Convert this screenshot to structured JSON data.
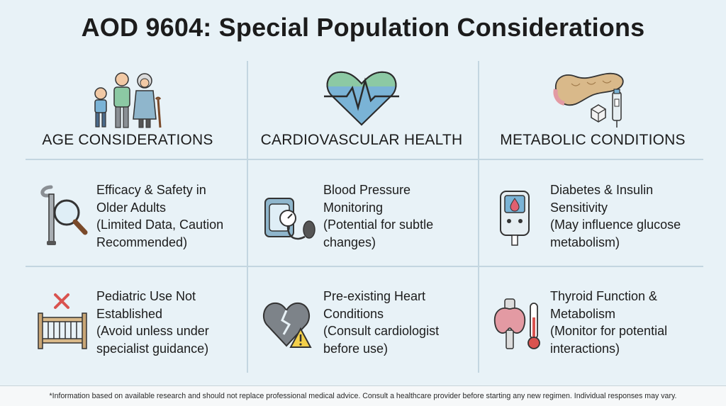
{
  "title": "AOD 9604: Special Population Considerations",
  "columns": [
    {
      "heading": "AGE CONSIDERATIONS",
      "icon": "elderly-family-icon"
    },
    {
      "heading": "CARDIOVASCULAR HEALTH",
      "icon": "heartbeat-icon"
    },
    {
      "heading": "METABOLIC CONDITIONS",
      "icon": "pancreas-insulin-icon"
    }
  ],
  "rows": [
    [
      {
        "icon": "cane-magnifier-icon",
        "lines": [
          "Efficacy & Safety in",
          "Older Adults",
          "(Limited Data, Caution",
          "Recommended)"
        ]
      },
      {
        "icon": "blood-pressure-monitor-icon",
        "lines": [
          "Blood Pressure",
          "Monitoring",
          "(Potential for subtle",
          "changes)"
        ]
      },
      {
        "icon": "glucose-meter-icon",
        "lines": [
          "Diabetes & Insulin",
          "Sensitivity",
          "(May influence glucose",
          "metabolism)"
        ]
      }
    ],
    [
      {
        "icon": "crib-cross-icon",
        "lines": [
          "Pediatric Use Not",
          "Established",
          "(Avoid unless under",
          "specialist guidance)"
        ]
      },
      {
        "icon": "broken-heart-warning-icon",
        "lines": [
          "Pre-existing Heart",
          "Conditions",
          "(Consult cardiologist",
          "before use)"
        ]
      },
      {
        "icon": "thyroid-thermometer-icon",
        "lines": [
          "Thyroid Function &",
          "Metabolism",
          "(Monitor for potential",
          "interactions)"
        ]
      }
    ]
  ],
  "footer": "*Information based on available research and should not replace professional medical advice. Consult a healthcare provider before starting any new regimen. Individual responses may vary.",
  "colors": {
    "background": "#e8f2f7",
    "divider": "#c3d6e0",
    "heart_green": "#8cc9a4",
    "heart_blue": "#7ab3d6",
    "pink": "#e39aa3",
    "tan": "#d9b98a"
  }
}
